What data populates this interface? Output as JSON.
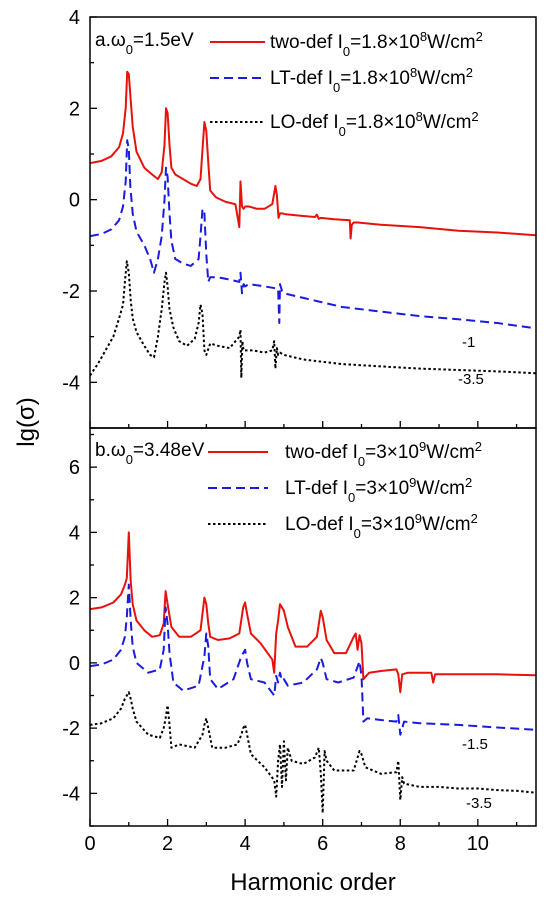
{
  "figure": {
    "ylabel": "lg(σ)",
    "xlabel": "Harmonic order"
  },
  "chart_data": [
    {
      "type": "line",
      "title": "a.ω0=1.5eV",
      "title_parts": {
        "main": "a.ω",
        "sub": "0",
        "rest": "=1.5eV"
      },
      "xlim": [
        0,
        11.5
      ],
      "ylim": [
        -5,
        4
      ],
      "xticks": [
        0,
        2,
        4,
        6,
        8,
        10
      ],
      "xticklabels": [
        "0",
        "2",
        "4",
        "6",
        "8",
        "10"
      ],
      "yticks": [
        4,
        2,
        0,
        -2,
        -4
      ],
      "yticklabels": [
        "4",
        "2",
        "0",
        "-2",
        "-4"
      ],
      "grid": false,
      "legend_position": "top-right",
      "offset_labels": [
        "-1",
        "-3.5"
      ],
      "series": [
        {
          "name": "two-def I0=1.8×10^8W/cm^2",
          "legend_parts": {
            "name": "two-def",
            "a": "I",
            "sub": "0",
            "b": "=1.8×10",
            "sup1": "8",
            "c": "W/cm",
            "sup2": "2"
          },
          "color": "#e8120c",
          "style": "solid",
          "x": [
            0,
            0.3,
            0.55,
            0.75,
            0.85,
            0.92,
            0.96,
            1.0,
            1.04,
            1.1,
            1.2,
            1.4,
            1.6,
            1.75,
            1.85,
            1.92,
            1.96,
            2.0,
            2.05,
            2.1,
            2.2,
            2.4,
            2.6,
            2.75,
            2.85,
            2.9,
            2.95,
            3.0,
            3.05,
            3.1,
            3.25,
            3.5,
            3.75,
            3.85,
            3.88,
            3.92,
            3.96,
            4.0,
            4.1,
            4.3,
            4.5,
            4.7,
            4.78,
            4.82,
            4.86,
            4.9,
            4.95,
            5.05,
            5.4,
            5.8,
            5.85,
            5.9,
            5.95,
            6.3,
            6.7,
            6.72,
            6.75,
            6.8,
            6.9,
            7.5,
            8.5,
            9.5,
            10.5,
            11.5
          ],
          "y": [
            0.8,
            0.85,
            0.95,
            1.15,
            1.45,
            2.0,
            2.8,
            2.75,
            2.3,
            1.6,
            1.05,
            0.7,
            0.55,
            0.45,
            0.6,
            1.2,
            2.0,
            1.9,
            1.2,
            0.7,
            0.55,
            0.45,
            0.35,
            0.3,
            0.45,
            1.1,
            1.7,
            1.5,
            0.8,
            0.2,
            0.05,
            -0.05,
            -0.1,
            -0.6,
            0.4,
            -0.15,
            -0.2,
            -0.15,
            -0.15,
            -0.2,
            -0.2,
            -0.1,
            0.3,
            0.1,
            -0.4,
            -0.3,
            -0.3,
            -0.32,
            -0.35,
            -0.38,
            -0.33,
            -0.42,
            -0.4,
            -0.43,
            -0.45,
            -0.85,
            -0.55,
            -0.5,
            -0.5,
            -0.55,
            -0.6,
            -0.68,
            -0.72,
            -0.78
          ]
        },
        {
          "name": "LT-def I0=1.8×10^8W/cm^2",
          "legend_parts": {
            "name": "LT-def",
            "a": "I",
            "sub": "0",
            "b": "=1.8×10",
            "sup1": "8",
            "c": "W/cm",
            "sup2": "2"
          },
          "color": "#1a1ae0",
          "style": "dashed",
          "x": [
            0,
            0.3,
            0.55,
            0.75,
            0.85,
            0.92,
            0.96,
            1.0,
            1.04,
            1.1,
            1.2,
            1.4,
            1.55,
            1.65,
            1.75,
            1.85,
            1.92,
            1.96,
            2.0,
            2.05,
            2.1,
            2.2,
            2.4,
            2.6,
            2.8,
            2.85,
            2.9,
            2.95,
            3.0,
            3.05,
            3.1,
            3.3,
            3.6,
            3.85,
            3.88,
            3.92,
            3.96,
            4.0,
            4.1,
            4.5,
            4.85,
            4.88,
            4.9,
            4.95,
            5.0,
            5.5,
            6.5,
            7.5,
            8.5,
            9.5,
            10.5,
            11.5
          ],
          "y": [
            -0.8,
            -0.75,
            -0.65,
            -0.45,
            -0.15,
            0.4,
            1.3,
            1.1,
            0.3,
            -0.3,
            -0.7,
            -1.0,
            -1.3,
            -1.6,
            -1.3,
            -0.8,
            0.0,
            0.7,
            0.5,
            -0.3,
            -0.9,
            -1.3,
            -1.4,
            -1.45,
            -1.3,
            -0.8,
            -0.2,
            -0.3,
            -1.2,
            -1.8,
            -1.7,
            -1.7,
            -1.75,
            -1.8,
            -1.6,
            -2.05,
            -1.85,
            -1.9,
            -1.85,
            -1.9,
            -1.95,
            -2.7,
            -1.85,
            -2.0,
            -2.05,
            -2.15,
            -2.35,
            -2.45,
            -2.55,
            -2.62,
            -2.7,
            -2.82
          ]
        },
        {
          "name": "LO-def I0=1.8×10^8W/cm^2",
          "legend_parts": {
            "name": "LO-def",
            "a": "I",
            "sub": "0",
            "b": "=1.8×10",
            "sup1": "8",
            "c": "W/cm",
            "sup2": "2"
          },
          "color": "#000000",
          "style": "dotted",
          "x": [
            0,
            0.2,
            0.4,
            0.6,
            0.75,
            0.85,
            0.9,
            0.95,
            1.0,
            1.05,
            1.1,
            1.2,
            1.4,
            1.55,
            1.65,
            1.75,
            1.85,
            1.92,
            1.96,
            2.0,
            2.05,
            2.15,
            2.3,
            2.5,
            2.7,
            2.8,
            2.85,
            2.9,
            2.95,
            3.0,
            3.1,
            3.3,
            3.6,
            3.85,
            3.88,
            3.9,
            3.93,
            3.96,
            4.0,
            4.2,
            4.5,
            4.7,
            4.75,
            4.78,
            4.82,
            4.85,
            4.9,
            5.0,
            5.5,
            6.5,
            7.5,
            8.5,
            9.5,
            10.5,
            11.5
          ],
          "y": [
            -3.85,
            -3.6,
            -3.3,
            -3.0,
            -2.6,
            -2.3,
            -1.8,
            -1.35,
            -1.6,
            -2.2,
            -2.6,
            -2.9,
            -3.2,
            -3.4,
            -3.45,
            -3.0,
            -2.4,
            -1.8,
            -1.6,
            -1.9,
            -2.4,
            -2.8,
            -3.1,
            -3.2,
            -3.05,
            -2.7,
            -2.3,
            -2.5,
            -3.3,
            -3.4,
            -3.15,
            -3.2,
            -3.25,
            -3.0,
            -2.85,
            -3.9,
            -3.1,
            -3.3,
            -3.3,
            -3.3,
            -3.35,
            -3.3,
            -3.1,
            -3.7,
            -3.25,
            -3.4,
            -3.35,
            -3.4,
            -3.5,
            -3.6,
            -3.65,
            -3.7,
            -3.73,
            -3.76,
            -3.8
          ]
        }
      ]
    },
    {
      "type": "line",
      "title": "b.ω0=3.48eV",
      "title_parts": {
        "main": "b.ω",
        "sub": "0",
        "rest": "=3.48eV"
      },
      "xlim": [
        0,
        11.5
      ],
      "ylim": [
        -5,
        7.2
      ],
      "xticks": [
        0,
        2,
        4,
        6,
        8,
        10
      ],
      "xticklabels": [
        "0",
        "2",
        "4",
        "6",
        "8",
        "10"
      ],
      "yticks": [
        6,
        4,
        2,
        0,
        -2,
        -4
      ],
      "yticklabels": [
        "6",
        "4",
        "2",
        "0",
        "-2",
        "-4"
      ],
      "grid": false,
      "legend_position": "top-right",
      "offset_labels": [
        "-1.5",
        "-3.5"
      ],
      "series": [
        {
          "name": "two-def I0=3×10^9W/cm^2",
          "legend_parts": {
            "name": "two-def",
            "a": "I",
            "sub": "0",
            "b": "=3×10",
            "sup1": "9",
            "c": "W/cm",
            "sup2": "2"
          },
          "color": "#e8120c",
          "style": "solid",
          "x": [
            0,
            0.3,
            0.6,
            0.8,
            0.9,
            0.95,
            1.0,
            1.05,
            1.1,
            1.2,
            1.4,
            1.6,
            1.8,
            1.9,
            1.95,
            2.0,
            2.1,
            2.3,
            2.6,
            2.85,
            2.95,
            3.0,
            3.05,
            3.1,
            3.3,
            3.6,
            3.85,
            3.95,
            4.0,
            4.05,
            4.15,
            4.4,
            4.7,
            4.75,
            4.8,
            4.85,
            4.9,
            5.0,
            5.1,
            5.3,
            5.6,
            5.85,
            5.95,
            6.0,
            6.1,
            6.3,
            6.6,
            6.8,
            6.85,
            6.9,
            6.95,
            7.0,
            7.05,
            7.2,
            7.5,
            7.9,
            7.95,
            8.0,
            8.05,
            8.2,
            8.8,
            8.85,
            8.9,
            9.5,
            10.5,
            11.5
          ],
          "y": [
            1.65,
            1.7,
            1.85,
            2.1,
            2.4,
            2.6,
            4.0,
            2.5,
            1.8,
            1.3,
            1.0,
            0.8,
            0.85,
            1.2,
            2.2,
            1.8,
            1.1,
            0.8,
            0.8,
            1.0,
            2.0,
            1.8,
            1.2,
            0.8,
            0.7,
            0.75,
            0.9,
            1.7,
            1.85,
            1.5,
            0.9,
            0.6,
            0.1,
            -0.3,
            0.9,
            1.3,
            1.8,
            1.6,
            1.1,
            0.5,
            0.5,
            0.8,
            1.6,
            1.4,
            0.7,
            0.3,
            0.3,
            0.8,
            0.9,
            0.4,
            0.85,
            0.6,
            -0.5,
            -0.3,
            -0.25,
            -0.2,
            -0.35,
            -0.9,
            -0.35,
            -0.3,
            -0.3,
            -0.6,
            -0.35,
            -0.35,
            -0.35,
            -0.38
          ]
        },
        {
          "name": "LT-def I0=3×10^9W/cm^2",
          "legend_parts": {
            "name": "LT-def",
            "a": "I",
            "sub": "0",
            "b": "=3×10",
            "sup1": "9",
            "c": "W/cm",
            "sup2": "2"
          },
          "color": "#1a1ae0",
          "style": "dashed",
          "x": [
            0,
            0.3,
            0.6,
            0.8,
            0.9,
            0.95,
            1.0,
            1.05,
            1.1,
            1.2,
            1.5,
            1.8,
            1.9,
            1.95,
            2.0,
            2.05,
            2.15,
            2.4,
            2.8,
            2.95,
            3.0,
            3.05,
            3.1,
            3.3,
            3.7,
            3.9,
            4.0,
            4.05,
            4.15,
            4.5,
            4.75,
            4.8,
            4.85,
            4.9,
            4.95,
            5.0,
            5.1,
            5.5,
            5.85,
            5.95,
            6.0,
            6.1,
            6.4,
            6.8,
            6.95,
            7.0,
            7.05,
            7.15,
            7.5,
            7.9,
            7.95,
            8.0,
            8.1,
            8.5,
            9.5,
            10.5,
            11.5
          ],
          "y": [
            -0.1,
            -0.05,
            0.1,
            0.4,
            0.8,
            1.4,
            2.4,
            1.3,
            0.5,
            0.0,
            -0.3,
            -0.2,
            0.4,
            1.7,
            1.2,
            0.3,
            -0.6,
            -0.85,
            -0.7,
            0.2,
            0.9,
            0.5,
            -0.5,
            -0.8,
            -0.5,
            0.2,
            0.4,
            0.0,
            -0.5,
            -0.6,
            -1.0,
            -0.4,
            -0.6,
            -0.3,
            -0.55,
            -0.5,
            -0.7,
            -0.6,
            -0.2,
            0.15,
            0.0,
            -0.5,
            -0.6,
            -0.45,
            0.05,
            -0.4,
            -1.8,
            -1.7,
            -1.75,
            -1.8,
            -1.6,
            -2.2,
            -1.8,
            -1.85,
            -1.9,
            -1.98,
            -2.05
          ]
        },
        {
          "name": "LO-def I0=3×10^9W/cm^2",
          "legend_parts": {
            "name": "LO-def",
            "a": "I",
            "sub": "0",
            "b": "=3×10",
            "sup1": "9",
            "c": "W/cm",
            "sup2": "2"
          },
          "color": "#000000",
          "style": "dotted",
          "x": [
            0,
            0.3,
            0.6,
            0.8,
            0.9,
            0.95,
            1.0,
            1.05,
            1.1,
            1.2,
            1.5,
            1.8,
            1.9,
            1.95,
            2.0,
            2.05,
            2.1,
            2.3,
            2.7,
            2.9,
            2.95,
            3.0,
            3.05,
            3.15,
            3.5,
            3.8,
            3.9,
            3.95,
            4.0,
            4.05,
            4.15,
            4.5,
            4.75,
            4.8,
            4.85,
            4.9,
            4.95,
            5.0,
            5.05,
            5.1,
            5.2,
            5.5,
            5.8,
            5.9,
            5.95,
            6.0,
            6.05,
            6.1,
            6.3,
            6.8,
            6.9,
            6.95,
            7.0,
            7.1,
            7.5,
            7.9,
            7.95,
            8.0,
            8.05,
            8.1,
            8.5,
            9.0,
            9.5,
            10.0,
            10.5,
            11.0,
            11.5
          ],
          "y": [
            -1.9,
            -1.85,
            -1.7,
            -1.4,
            -1.1,
            -1.0,
            -0.9,
            -1.1,
            -1.4,
            -1.8,
            -2.2,
            -2.3,
            -2.0,
            -1.7,
            -1.3,
            -1.9,
            -2.6,
            -2.5,
            -2.6,
            -2.2,
            -1.9,
            -1.7,
            -2.0,
            -2.6,
            -2.6,
            -2.5,
            -2.2,
            -2.0,
            -1.9,
            -2.2,
            -2.8,
            -3.2,
            -3.6,
            -4.1,
            -3.0,
            -2.5,
            -3.8,
            -2.4,
            -3.6,
            -2.6,
            -3.0,
            -3.1,
            -2.9,
            -2.6,
            -3.4,
            -4.6,
            -2.7,
            -3.0,
            -3.3,
            -3.3,
            -2.9,
            -2.7,
            -2.8,
            -3.2,
            -3.4,
            -3.35,
            -3.0,
            -4.2,
            -3.5,
            -3.7,
            -3.8,
            -3.8,
            -3.85,
            -3.85,
            -3.9,
            -3.92,
            -3.98
          ]
        }
      ]
    }
  ]
}
